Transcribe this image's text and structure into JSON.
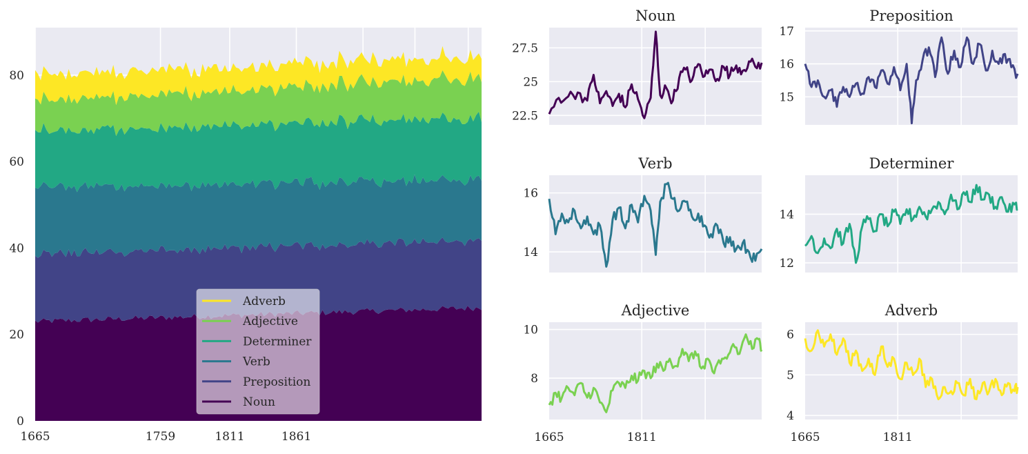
{
  "chart_data": [
    {
      "type": "area",
      "stacked": true,
      "title": "",
      "xlabel": "",
      "ylabel": "",
      "x_start": 1665,
      "x_end": 2000,
      "xlim": [
        1665,
        2000
      ],
      "ylim": [
        0,
        91
      ],
      "xticks": [
        "1665",
        "1759",
        "1811",
        "1861"
      ],
      "yticks": [
        "0",
        "20",
        "40",
        "60",
        "80"
      ],
      "grid": true,
      "legend_placement": "lower-center",
      "legend": [
        "Adverb",
        "Adjective",
        "Determiner",
        "Verb",
        "Preposition",
        "Noun"
      ],
      "series": [
        {
          "name": "Noun",
          "color": "#440154",
          "approx_level_start": 23,
          "approx_level_end": 26.2
        },
        {
          "name": "Preposition",
          "color": "#414487",
          "approx_level_start": 15.5,
          "approx_level_end": 15.6
        },
        {
          "name": "Verb",
          "color": "#2a788e",
          "approx_level_start": 15.5,
          "approx_level_end": 14.0
        },
        {
          "name": "Determiner",
          "color": "#22a884",
          "approx_level_start": 13.0,
          "approx_level_end": 14.2
        },
        {
          "name": "Adjective",
          "color": "#7ad151",
          "approx_level_start": 7.0,
          "approx_level_end": 9.5
        },
        {
          "name": "Adverb",
          "color": "#fde725",
          "approx_level_start": 6.0,
          "approx_level_end": 4.8
        }
      ]
    },
    {
      "type": "line",
      "title": "Noun",
      "color": "#440154",
      "xlim": [
        1665,
        2000
      ],
      "ylim": [
        21.8,
        29.0
      ],
      "yticks": [
        22.5,
        25.0,
        27.5
      ],
      "xticks": [],
      "points": [
        [
          1665,
          22.6
        ],
        [
          1680,
          23.8
        ],
        [
          1695,
          23.9
        ],
        [
          1710,
          24.2
        ],
        [
          1725,
          23.6
        ],
        [
          1735,
          25.5
        ],
        [
          1745,
          23.4
        ],
        [
          1755,
          24.3
        ],
        [
          1765,
          23.2
        ],
        [
          1775,
          24.1
        ],
        [
          1785,
          23.1
        ],
        [
          1795,
          24.8
        ],
        [
          1805,
          23.7
        ],
        [
          1815,
          22.3
        ],
        [
          1825,
          23.8
        ],
        [
          1833,
          28.7
        ],
        [
          1840,
          24.0
        ],
        [
          1850,
          24.5
        ],
        [
          1860,
          23.6
        ],
        [
          1870,
          25.3
        ],
        [
          1880,
          25.9
        ],
        [
          1890,
          25.1
        ],
        [
          1900,
          26.3
        ],
        [
          1910,
          25.4
        ],
        [
          1920,
          25.9
        ],
        [
          1930,
          25.2
        ],
        [
          1940,
          26.1
        ],
        [
          1950,
          25.5
        ],
        [
          1960,
          26.2
        ],
        [
          1970,
          25.8
        ],
        [
          1980,
          26.5
        ],
        [
          1990,
          26.1
        ],
        [
          2000,
          26.4
        ]
      ]
    },
    {
      "type": "line",
      "title": "Preposition",
      "color": "#414487",
      "xlim": [
        1665,
        2000
      ],
      "ylim": [
        14.15,
        17.1
      ],
      "yticks": [
        15,
        16,
        17
      ],
      "xticks": [],
      "points": [
        [
          1665,
          16.0
        ],
        [
          1675,
          15.3
        ],
        [
          1685,
          15.5
        ],
        [
          1695,
          15.0
        ],
        [
          1705,
          15.2
        ],
        [
          1715,
          14.7
        ],
        [
          1725,
          15.3
        ],
        [
          1735,
          15.0
        ],
        [
          1745,
          15.4
        ],
        [
          1755,
          15.1
        ],
        [
          1765,
          15.6
        ],
        [
          1775,
          15.3
        ],
        [
          1785,
          15.8
        ],
        [
          1795,
          15.4
        ],
        [
          1805,
          15.9
        ],
        [
          1815,
          15.2
        ],
        [
          1825,
          16.0
        ],
        [
          1833,
          14.2
        ],
        [
          1840,
          15.5
        ],
        [
          1850,
          16.1
        ],
        [
          1860,
          16.5
        ],
        [
          1870,
          15.6
        ],
        [
          1880,
          16.8
        ],
        [
          1890,
          15.7
        ],
        [
          1900,
          16.4
        ],
        [
          1910,
          15.9
        ],
        [
          1920,
          16.8
        ],
        [
          1930,
          16.0
        ],
        [
          1940,
          16.6
        ],
        [
          1950,
          15.8
        ],
        [
          1960,
          16.4
        ],
        [
          1970,
          16.0
        ],
        [
          1980,
          16.3
        ],
        [
          1990,
          15.9
        ],
        [
          2000,
          15.7
        ]
      ]
    },
    {
      "type": "line",
      "title": "Verb",
      "color": "#2a788e",
      "xlim": [
        1665,
        2000
      ],
      "ylim": [
        13.3,
        16.6
      ],
      "yticks": [
        14,
        16
      ],
      "xticks": [],
      "points": [
        [
          1665,
          15.8
        ],
        [
          1675,
          14.6
        ],
        [
          1685,
          15.3
        ],
        [
          1695,
          15.0
        ],
        [
          1705,
          15.4
        ],
        [
          1715,
          14.8
        ],
        [
          1725,
          15.2
        ],
        [
          1735,
          14.6
        ],
        [
          1745,
          14.9
        ],
        [
          1755,
          13.5
        ],
        [
          1765,
          15.1
        ],
        [
          1775,
          15.5
        ],
        [
          1785,
          14.8
        ],
        [
          1795,
          15.6
        ],
        [
          1805,
          15.0
        ],
        [
          1815,
          15.9
        ],
        [
          1825,
          15.4
        ],
        [
          1833,
          13.9
        ],
        [
          1840,
          15.7
        ],
        [
          1850,
          16.3
        ],
        [
          1860,
          15.8
        ],
        [
          1870,
          15.4
        ],
        [
          1880,
          15.7
        ],
        [
          1890,
          15.2
        ],
        [
          1900,
          15.3
        ],
        [
          1910,
          14.9
        ],
        [
          1920,
          14.6
        ],
        [
          1930,
          14.9
        ],
        [
          1940,
          14.3
        ],
        [
          1950,
          14.5
        ],
        [
          1960,
          14.1
        ],
        [
          1970,
          14.3
        ],
        [
          1980,
          14.0
        ],
        [
          1990,
          13.7
        ],
        [
          2000,
          14.1
        ]
      ]
    },
    {
      "type": "line",
      "title": "Determiner",
      "color": "#22a884",
      "xlim": [
        1665,
        2000
      ],
      "ylim": [
        11.6,
        15.6
      ],
      "yticks": [
        12,
        14
      ],
      "xticks": [],
      "points": [
        [
          1665,
          12.7
        ],
        [
          1675,
          13.1
        ],
        [
          1685,
          12.4
        ],
        [
          1695,
          13.0
        ],
        [
          1705,
          12.6
        ],
        [
          1715,
          13.4
        ],
        [
          1725,
          12.8
        ],
        [
          1735,
          13.6
        ],
        [
          1745,
          12.0
        ],
        [
          1755,
          13.5
        ],
        [
          1765,
          13.8
        ],
        [
          1775,
          13.3
        ],
        [
          1785,
          14.0
        ],
        [
          1795,
          13.5
        ],
        [
          1805,
          14.1
        ],
        [
          1815,
          13.6
        ],
        [
          1825,
          14.2
        ],
        [
          1835,
          13.8
        ],
        [
          1845,
          14.3
        ],
        [
          1855,
          13.9
        ],
        [
          1865,
          14.2
        ],
        [
          1875,
          14.5
        ],
        [
          1885,
          14.0
        ],
        [
          1895,
          14.8
        ],
        [
          1905,
          14.2
        ],
        [
          1915,
          14.9
        ],
        [
          1925,
          14.5
        ],
        [
          1935,
          15.2
        ],
        [
          1945,
          14.6
        ],
        [
          1955,
          14.8
        ],
        [
          1965,
          14.3
        ],
        [
          1975,
          14.7
        ],
        [
          1985,
          14.1
        ],
        [
          1995,
          14.4
        ],
        [
          2000,
          14.2
        ]
      ]
    },
    {
      "type": "line",
      "title": "Adjective",
      "color": "#7ad151",
      "xlim": [
        1665,
        2000
      ],
      "ylim": [
        6.3,
        10.3
      ],
      "yticks": [
        8,
        10
      ],
      "xticks": [
        "1665",
        "1811"
      ],
      "points": [
        [
          1665,
          6.9
        ],
        [
          1675,
          7.4
        ],
        [
          1685,
          7.2
        ],
        [
          1695,
          7.6
        ],
        [
          1705,
          7.3
        ],
        [
          1715,
          7.8
        ],
        [
          1725,
          7.2
        ],
        [
          1735,
          7.6
        ],
        [
          1745,
          7.0
        ],
        [
          1755,
          6.6
        ],
        [
          1765,
          7.5
        ],
        [
          1775,
          7.8
        ],
        [
          1785,
          7.6
        ],
        [
          1795,
          8.1
        ],
        [
          1805,
          7.9
        ],
        [
          1815,
          8.3
        ],
        [
          1825,
          8.0
        ],
        [
          1835,
          8.6
        ],
        [
          1845,
          8.3
        ],
        [
          1855,
          8.8
        ],
        [
          1865,
          8.5
        ],
        [
          1875,
          9.2
        ],
        [
          1885,
          8.7
        ],
        [
          1895,
          9.1
        ],
        [
          1905,
          8.4
        ],
        [
          1915,
          8.8
        ],
        [
          1925,
          8.2
        ],
        [
          1935,
          8.6
        ],
        [
          1945,
          8.8
        ],
        [
          1955,
          9.4
        ],
        [
          1965,
          9.0
        ],
        [
          1975,
          9.8
        ],
        [
          1985,
          9.2
        ],
        [
          1995,
          9.6
        ],
        [
          2000,
          9.1
        ]
      ]
    },
    {
      "type": "line",
      "title": "Adverb",
      "color": "#fde725",
      "xlim": [
        1665,
        2000
      ],
      "ylim": [
        3.9,
        6.3
      ],
      "yticks": [
        4,
        5,
        6
      ],
      "xticks": [
        "1665",
        "1811"
      ],
      "points": [
        [
          1665,
          5.9
        ],
        [
          1675,
          5.6
        ],
        [
          1685,
          6.1
        ],
        [
          1695,
          5.7
        ],
        [
          1705,
          6.0
        ],
        [
          1715,
          5.5
        ],
        [
          1725,
          5.9
        ],
        [
          1735,
          5.3
        ],
        [
          1745,
          5.6
        ],
        [
          1755,
          5.1
        ],
        [
          1765,
          5.4
        ],
        [
          1775,
          5.0
        ],
        [
          1785,
          5.7
        ],
        [
          1795,
          5.2
        ],
        [
          1805,
          5.4
        ],
        [
          1815,
          4.9
        ],
        [
          1825,
          5.3
        ],
        [
          1835,
          5.0
        ],
        [
          1845,
          5.4
        ],
        [
          1855,
          4.7
        ],
        [
          1865,
          4.9
        ],
        [
          1875,
          4.4
        ],
        [
          1885,
          4.7
        ],
        [
          1895,
          4.6
        ],
        [
          1905,
          4.8
        ],
        [
          1915,
          4.5
        ],
        [
          1925,
          4.9
        ],
        [
          1935,
          4.4
        ],
        [
          1945,
          4.8
        ],
        [
          1955,
          4.6
        ],
        [
          1965,
          4.9
        ],
        [
          1975,
          4.5
        ],
        [
          1985,
          4.8
        ],
        [
          1995,
          4.6
        ],
        [
          2000,
          4.7
        ]
      ]
    }
  ]
}
